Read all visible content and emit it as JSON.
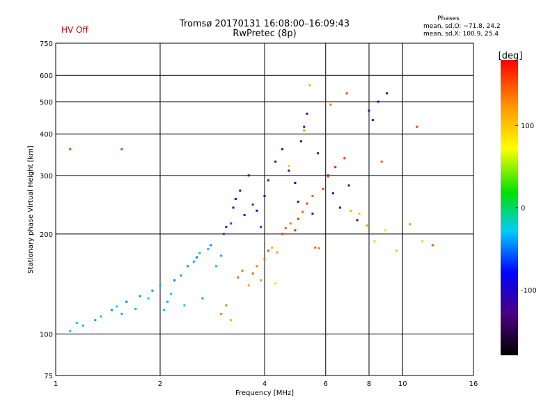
{
  "header": {
    "status": "HV Off",
    "status_color": "#cc0000",
    "title_line1": "Tromsø 20170131 16:08:00–16:09:43",
    "title_line2": "RwPretec (8p)",
    "phases_title": "Phases",
    "phases_o": "mean, sd,O: −71.8, 24.2",
    "phases_x": "mean, sd,X: 100.9, 25.4"
  },
  "chart_data": {
    "type": "scatter",
    "xlabel": "Frequency [MHz]",
    "ylabel": "Stationary phase Virtual Height [km]",
    "x_scale": "log",
    "y_scale": "log",
    "xlim": [
      1,
      16
    ],
    "ylim": [
      75,
      750
    ],
    "x_ticks": [
      1,
      2,
      4,
      6,
      8,
      10,
      16
    ],
    "y_ticks": [
      75,
      100,
      200,
      300,
      400,
      500,
      600,
      750
    ],
    "x_grid": [
      2,
      4,
      6,
      8,
      10
    ],
    "y_grid": [
      100,
      200,
      300,
      400,
      500,
      600
    ],
    "grid": true,
    "colorbar": {
      "label": "[deg]",
      "min": -180,
      "max": 180,
      "ticks": [
        100,
        0,
        -100
      ],
      "colors": [
        "#000000",
        "#4b0082",
        "#0000ff",
        "#00ccff",
        "#00e000",
        "#ffff00",
        "#ff9900",
        "#ff0000"
      ]
    },
    "series": [
      {
        "points": [
          [
            1.1,
            102,
            -25
          ],
          [
            1.15,
            108,
            -30
          ],
          [
            1.2,
            106,
            -20
          ],
          [
            1.3,
            110,
            -35
          ],
          [
            1.35,
            113,
            -28
          ],
          [
            1.45,
            118,
            -40
          ],
          [
            1.5,
            121,
            -22
          ],
          [
            1.55,
            115,
            -33
          ],
          [
            1.6,
            125,
            -45
          ],
          [
            1.7,
            119,
            -30
          ],
          [
            1.75,
            130,
            -38
          ],
          [
            1.85,
            128,
            -26
          ],
          [
            1.9,
            135,
            -42
          ],
          [
            2.0,
            140,
            -30
          ],
          [
            2.05,
            118,
            -24
          ],
          [
            2.1,
            125,
            -36
          ],
          [
            2.15,
            132,
            -28
          ],
          [
            2.2,
            145,
            -48
          ],
          [
            2.3,
            150,
            -35
          ],
          [
            2.35,
            122,
            -22
          ],
          [
            2.4,
            160,
            -40
          ],
          [
            2.5,
            165,
            -33
          ],
          [
            2.55,
            170,
            -46
          ],
          [
            2.6,
            175,
            -29
          ],
          [
            2.65,
            128,
            -37
          ],
          [
            2.75,
            180,
            -31
          ],
          [
            2.8,
            185,
            -44
          ],
          [
            2.9,
            160,
            -27
          ],
          [
            3.0,
            172,
            -39
          ],
          [
            3.05,
            200,
            -60
          ],
          [
            3.1,
            210,
            -70
          ],
          [
            3.2,
            215,
            -55
          ],
          [
            3.25,
            240,
            -90
          ],
          [
            3.3,
            255,
            -80
          ],
          [
            3.4,
            270,
            -95
          ],
          [
            3.5,
            228,
            -75
          ],
          [
            3.6,
            300,
            -110
          ],
          [
            3.7,
            245,
            -65
          ],
          [
            3.8,
            235,
            -85
          ],
          [
            3.9,
            210,
            -58
          ],
          [
            4.0,
            260,
            -100
          ],
          [
            4.1,
            290,
            -115
          ],
          [
            4.3,
            330,
            -120
          ],
          [
            4.5,
            360,
            -105
          ],
          [
            4.7,
            310,
            -118
          ],
          [
            4.9,
            285,
            -92
          ],
          [
            5.0,
            250,
            -125
          ],
          [
            5.1,
            380,
            -130
          ],
          [
            5.2,
            420,
            -110
          ],
          [
            5.3,
            460,
            -122
          ],
          [
            5.5,
            230,
            -100
          ],
          [
            5.7,
            350,
            -115
          ],
          [
            6.1,
            300,
            -108
          ],
          [
            6.3,
            265,
            -120
          ],
          [
            6.6,
            240,
            -95
          ],
          [
            7.0,
            280,
            -112
          ],
          [
            7.4,
            220,
            -102
          ],
          [
            8.0,
            470,
            -128
          ],
          [
            8.2,
            440,
            -116
          ],
          [
            8.5,
            500,
            -120
          ],
          [
            9.0,
            530,
            -106
          ]
        ]
      },
      {
        "points": [
          [
            3.0,
            115,
            140
          ],
          [
            3.1,
            122,
            135
          ],
          [
            3.2,
            110,
            120
          ],
          [
            3.35,
            148,
            150
          ],
          [
            3.45,
            155,
            142
          ],
          [
            3.6,
            140,
            125
          ],
          [
            3.7,
            152,
            148
          ],
          [
            3.8,
            160,
            138
          ],
          [
            3.9,
            145,
            132
          ],
          [
            4.0,
            168,
            145
          ],
          [
            4.1,
            178,
            155
          ],
          [
            4.2,
            182,
            110
          ],
          [
            4.35,
            176,
            128
          ],
          [
            4.5,
            200,
            160
          ],
          [
            4.6,
            208,
            150
          ],
          [
            4.75,
            215,
            140
          ],
          [
            4.9,
            205,
            170
          ],
          [
            5.0,
            222,
            165
          ],
          [
            5.15,
            233,
            150
          ],
          [
            5.3,
            247,
            158
          ],
          [
            5.5,
            260,
            145
          ],
          [
            5.6,
            182,
            150
          ],
          [
            5.75,
            181,
            135
          ],
          [
            5.9,
            273,
            155
          ],
          [
            6.1,
            298,
            160
          ],
          [
            6.4,
            318,
            170
          ],
          [
            6.8,
            338,
            165
          ],
          [
            7.1,
            235,
            120
          ],
          [
            7.5,
            230,
            110
          ],
          [
            7.9,
            212,
            130
          ],
          [
            8.3,
            190,
            100
          ],
          [
            8.9,
            205,
            95
          ],
          [
            9.6,
            178,
            115
          ],
          [
            10.5,
            214,
            130
          ],
          [
            11.4,
            190,
            105
          ],
          [
            12.2,
            185,
            155
          ],
          [
            4.3,
            142,
            95
          ],
          [
            4.7,
            320,
            100
          ],
          [
            5.2,
            410,
            130
          ],
          [
            5.4,
            560,
            120
          ],
          [
            6.2,
            490,
            140
          ],
          [
            6.9,
            530,
            160
          ],
          [
            8.7,
            330,
            150
          ],
          [
            11.0,
            420,
            160
          ],
          [
            1.1,
            360,
            160
          ],
          [
            1.55,
            360,
            165
          ]
        ]
      }
    ]
  }
}
